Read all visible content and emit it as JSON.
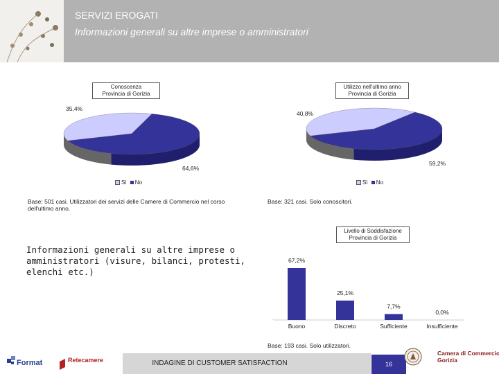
{
  "header": {
    "title": "SERVIZI EROGATI",
    "subtitle": "Informazioni generali su altre imprese o amministratori"
  },
  "left_text": "Informazioni generali su altre imprese o amministratori (visure, bilanci, protesti, elenchi etc.)",
  "colors": {
    "si": "#ccccff",
    "no": "#333399",
    "side": "#666666",
    "bar": "#333399"
  },
  "chart_data": [
    {
      "type": "pie",
      "title_lines": [
        "Conoscenza",
        "Provincia di Gorizia"
      ],
      "labels": [
        "Sì",
        "No"
      ],
      "values": [
        35.4,
        64.6
      ],
      "value_labels": [
        "35,4%",
        "64,6%"
      ],
      "legend": [
        "Sì",
        "No"
      ],
      "base_note": "Base: 501 casi. Utilizzatori dei servizi delle Camere di Commercio nel corso dell'ultimo anno."
    },
    {
      "type": "pie",
      "title_lines": [
        "Utilizzo nell'ultimo anno",
        "Provincia di Gorizia"
      ],
      "labels": [
        "Sì",
        "No"
      ],
      "values": [
        40.8,
        59.2
      ],
      "value_labels": [
        "40,8%",
        "59,2%"
      ],
      "legend": [
        "Sì",
        "No"
      ],
      "base_note": "Base: 321 casi. Solo conoscitori."
    },
    {
      "type": "bar",
      "title_lines": [
        "Livello di Soddisfazione",
        "Provincia di Gorizia"
      ],
      "categories": [
        "Buono",
        "Discreto",
        "Sufficiente",
        "Insufficiente"
      ],
      "values": [
        67.2,
        25.1,
        7.7,
        0.0
      ],
      "value_labels": [
        "67,2%",
        "25,1%",
        "7,7%",
        "0,0%"
      ],
      "ylim": [
        0,
        100
      ],
      "base_note": "Base: 193 casi. Solo utilizzatori."
    }
  ],
  "footer": {
    "text": "INDAGINE DI CUSTOMER SATISFACTION",
    "page": "16",
    "logo_format": "Format",
    "logo_retecamere": "Retecamere",
    "logo_camera_1": "Camera di Commercio",
    "logo_camera_2": "Gorizia"
  }
}
